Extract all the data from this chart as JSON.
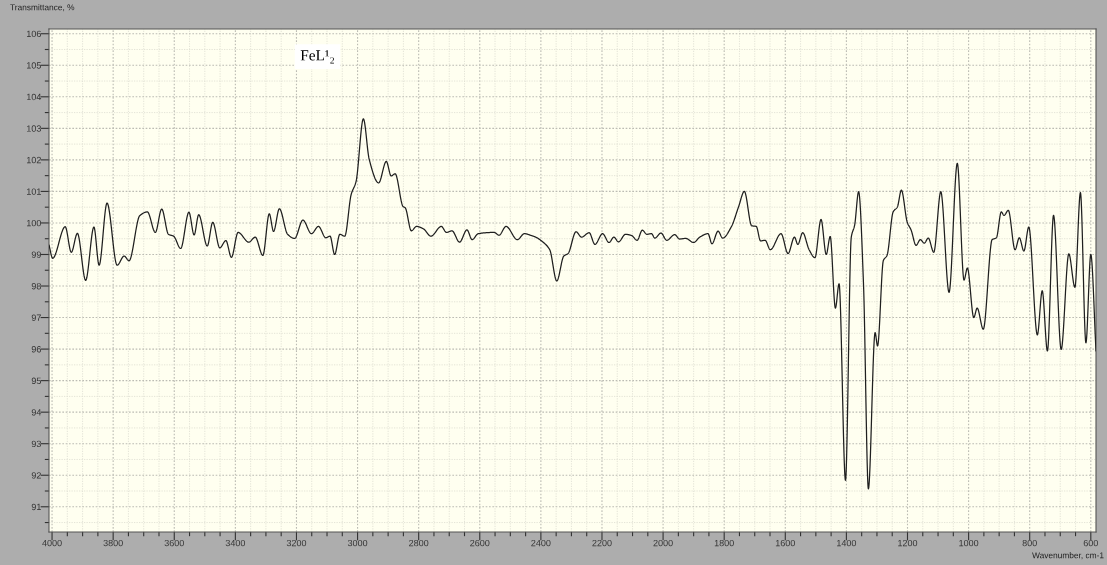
{
  "chart_data": {
    "type": "line",
    "title": "FeL¹₂",
    "xlabel": "Wavenumber, cm-1",
    "ylabel": "Transmittance, %",
    "color": "#1f1f1f",
    "x": [
      4010,
      3998,
      3957,
      3937,
      3917,
      3890,
      3863,
      3846,
      3820,
      3787,
      3764,
      3748,
      3713,
      3688,
      3662,
      3641,
      3619,
      3602,
      3579,
      3552,
      3535,
      3520,
      3492,
      3474,
      3451,
      3431,
      3413,
      3391,
      3356,
      3335,
      3310,
      3289,
      3275,
      3256,
      3229,
      3206,
      3179,
      3151,
      3128,
      3104,
      3090,
      3075,
      3058,
      3042,
      3021,
      3005,
      2981,
      2962,
      2931,
      2906,
      2890,
      2877,
      2851,
      2844,
      2824,
      2807,
      2784,
      2760,
      2726,
      2709,
      2691,
      2666,
      2642,
      2625,
      2605,
      2553,
      2537,
      2514,
      2477,
      2454,
      2431,
      2417,
      2394,
      2371,
      2348,
      2325,
      2311,
      2285,
      2267,
      2242,
      2223,
      2198,
      2177,
      2161,
      2146,
      2123,
      2103,
      2085,
      2068,
      2053,
      2038,
      2027,
      2007,
      1988,
      1962,
      1946,
      1926,
      1900,
      1880,
      1853,
      1840,
      1820,
      1805,
      1776,
      1753,
      1734,
      1710,
      1695,
      1681,
      1666,
      1649,
      1614,
      1591,
      1570,
      1559,
      1543,
      1522,
      1503,
      1483,
      1466,
      1453,
      1436,
      1424,
      1403,
      1384,
      1373,
      1360,
      1344,
      1328,
      1306,
      1298,
      1279,
      1267,
      1247,
      1233,
      1220,
      1201,
      1188,
      1172,
      1158,
      1145,
      1132,
      1114,
      1091,
      1064,
      1037,
      1015,
      1004,
      983,
      972,
      952,
      923,
      909,
      893,
      884,
      870,
      848,
      834,
      819,
      803,
      775,
      759,
      742,
      722,
      697,
      672,
      652,
      634,
      616,
      600,
      583
    ],
    "values": [
      99.3,
      98.88,
      99.88,
      99.07,
      99.67,
      98.18,
      99.87,
      98.66,
      100.63,
      98.66,
      98.95,
      98.8,
      100.23,
      100.35,
      99.7,
      100.44,
      99.64,
      99.58,
      99.19,
      100.34,
      99.62,
      100.26,
      99.27,
      100.02,
      99.21,
      99.44,
      98.91,
      99.7,
      99.39,
      99.55,
      98.97,
      100.29,
      99.73,
      100.45,
      99.64,
      99.51,
      100.09,
      99.66,
      99.89,
      99.53,
      99.58,
      99.0,
      99.64,
      99.58,
      100.9,
      101.31,
      103.3,
      102.02,
      101.27,
      101.95,
      101.49,
      101.56,
      100.52,
      100.48,
      99.75,
      99.89,
      99.81,
      99.58,
      99.89,
      99.7,
      99.75,
      99.39,
      99.78,
      99.47,
      99.66,
      99.7,
      99.61,
      99.89,
      99.47,
      99.66,
      99.6,
      99.55,
      99.4,
      99.15,
      98.16,
      98.95,
      99.03,
      99.72,
      99.55,
      99.69,
      99.32,
      99.66,
      99.38,
      99.55,
      99.4,
      99.64,
      99.6,
      99.45,
      99.77,
      99.64,
      99.66,
      99.52,
      99.68,
      99.45,
      99.63,
      99.49,
      99.51,
      99.38,
      99.55,
      99.66,
      99.34,
      99.74,
      99.52,
      99.89,
      100.51,
      101.0,
      99.91,
      99.89,
      99.43,
      99.45,
      99.15,
      99.66,
      99.03,
      99.55,
      99.32,
      99.69,
      99.15,
      98.9,
      100.11,
      99.0,
      99.57,
      97.3,
      98.07,
      91.84,
      99.55,
      99.93,
      100.99,
      98.06,
      91.57,
      96.52,
      96.1,
      98.81,
      98.97,
      100.35,
      100.51,
      101.04,
      100.03,
      99.77,
      99.29,
      99.47,
      99.36,
      99.52,
      99.07,
      100.99,
      97.8,
      101.89,
      98.19,
      98.57,
      97.0,
      97.3,
      96.63,
      99.47,
      99.53,
      100.35,
      100.24,
      100.4,
      99.15,
      99.53,
      99.11,
      99.87,
      96.45,
      97.85,
      95.94,
      100.24,
      95.99,
      99.02,
      97.96,
      100.96,
      96.2,
      99.0,
      95.94
    ],
    "xlim": [
      4010,
      583
    ],
    "ylim": [
      90.2,
      106.15
    ],
    "xticks": [
      4000,
      {
        "value": 3950,
        "label": null
      },
      {
        "value": 3900,
        "label": null
      },
      {
        "value": 3850,
        "label": null
      },
      3800,
      {
        "value": 3750,
        "label": null
      },
      {
        "value": 3700,
        "label": null
      },
      {
        "value": 3650,
        "label": null
      },
      3600,
      {
        "value": 3550,
        "label": null
      },
      {
        "value": 3500,
        "label": null
      },
      {
        "value": 3450,
        "label": null
      },
      3400,
      {
        "value": 3350,
        "label": null
      },
      {
        "value": 3300,
        "label": null
      },
      {
        "value": 3250,
        "label": null
      },
      3200,
      {
        "value": 3150,
        "label": null
      },
      {
        "value": 3100,
        "label": null
      },
      {
        "value": 3050,
        "label": null
      },
      3000,
      {
        "value": 2950,
        "label": null
      },
      {
        "value": 2900,
        "label": null
      },
      {
        "value": 2850,
        "label": null
      },
      2800,
      {
        "value": 2750,
        "label": null
      },
      {
        "value": 2700,
        "label": null
      },
      {
        "value": 2650,
        "label": null
      },
      2600,
      {
        "value": 2550,
        "label": null
      },
      {
        "value": 2500,
        "label": null
      },
      {
        "value": 2450,
        "label": null
      },
      2400,
      {
        "value": 2350,
        "label": null
      },
      {
        "value": 2300,
        "label": null
      },
      {
        "value": 2250,
        "label": null
      },
      2200,
      {
        "value": 2150,
        "label": null
      },
      {
        "value": 2100,
        "label": null
      },
      {
        "value": 2050,
        "label": null
      },
      2000,
      {
        "value": 1950,
        "label": null
      },
      {
        "value": 1900,
        "label": null
      },
      {
        "value": 1850,
        "label": null
      },
      1800,
      {
        "value": 1750,
        "label": null
      },
      {
        "value": 1700,
        "label": null
      },
      {
        "value": 1650,
        "label": null
      },
      1600,
      {
        "value": 1550,
        "label": null
      },
      {
        "value": 1500,
        "label": null
      },
      {
        "value": 1450,
        "label": null
      },
      1400,
      {
        "value": 1350,
        "label": null
      },
      {
        "value": 1300,
        "label": null
      },
      {
        "value": 1250,
        "label": null
      },
      1200,
      {
        "value": 1150,
        "label": null
      },
      {
        "value": 1100,
        "label": null
      },
      {
        "value": 1050,
        "label": null
      },
      1000,
      {
        "value": 950,
        "label": null
      },
      {
        "value": 900,
        "label": null
      },
      {
        "value": 850,
        "label": null
      },
      800,
      {
        "value": 750,
        "label": null
      },
      {
        "value": 700,
        "label": null
      },
      {
        "value": 650,
        "label": null
      },
      600
    ],
    "yticks": [
      {
        "value": 90.5,
        "label": null
      },
      91,
      {
        "value": 91.5,
        "label": null
      },
      92,
      {
        "value": 92.5,
        "label": null
      },
      93,
      {
        "value": 93.5,
        "label": null
      },
      94,
      {
        "value": 94.5,
        "label": null
      },
      95,
      {
        "value": 95.5,
        "label": null
      },
      96,
      {
        "value": 96.5,
        "label": null
      },
      97,
      {
        "value": 97.5,
        "label": null
      },
      98,
      {
        "value": 98.5,
        "label": null
      },
      99,
      {
        "value": 99.5,
        "label": null
      },
      100,
      {
        "value": 100.5,
        "label": null
      },
      101,
      {
        "value": 101.5,
        "label": null
      },
      102,
      {
        "value": 102.5,
        "label": null
      },
      103,
      {
        "value": 103.5,
        "label": null
      },
      104,
      {
        "value": 104.5,
        "label": null
      },
      105,
      {
        "value": 105.5,
        "label": null
      },
      106
    ],
    "grid": true
  }
}
